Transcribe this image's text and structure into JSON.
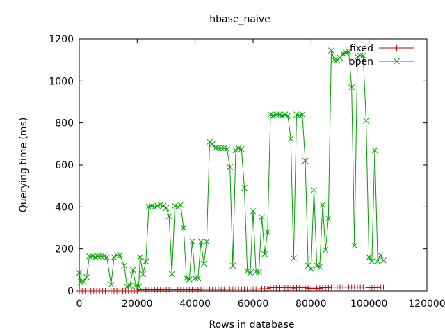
{
  "chart_data": {
    "type": "line",
    "title": "hbase_naive",
    "xlabel": "Rows in database",
    "ylabel": "Querying time (ms)",
    "xlim": [
      0,
      120000
    ],
    "ylim": [
      0,
      1200
    ],
    "xticks": [
      0,
      20000,
      40000,
      60000,
      80000,
      100000,
      120000
    ],
    "yticks": [
      0,
      200,
      400,
      600,
      800,
      1000,
      1200
    ],
    "xtick_labels": [
      "0",
      "20000",
      "40000",
      "60000",
      "80000",
      "100000",
      "120000"
    ],
    "ytick_labels": [
      "0",
      "200",
      "400",
      "600",
      "800",
      "1000",
      "1200"
    ],
    "grid": false,
    "legend_position": "top-right",
    "series": [
      {
        "name": "fixed",
        "color": "#cc0000",
        "marker": "plus",
        "points": [
          [
            0,
            0
          ],
          [
            1000,
            0
          ],
          [
            2000,
            0
          ],
          [
            3000,
            0
          ],
          [
            4000,
            0
          ],
          [
            5000,
            0
          ],
          [
            6000,
            0
          ],
          [
            7000,
            0
          ],
          [
            8000,
            0
          ],
          [
            9000,
            0
          ],
          [
            10000,
            0
          ],
          [
            11000,
            0
          ],
          [
            12000,
            0
          ],
          [
            13000,
            0
          ],
          [
            14000,
            0
          ],
          [
            15000,
            0
          ],
          [
            16000,
            0
          ],
          [
            17000,
            0
          ],
          [
            18000,
            0
          ],
          [
            19000,
            0
          ],
          [
            20000,
            0
          ],
          [
            21000,
            5
          ],
          [
            22000,
            5
          ],
          [
            23000,
            5
          ],
          [
            24000,
            5
          ],
          [
            25000,
            5
          ],
          [
            26000,
            5
          ],
          [
            27000,
            5
          ],
          [
            28000,
            5
          ],
          [
            29000,
            5
          ],
          [
            30000,
            5
          ],
          [
            31000,
            5
          ],
          [
            32000,
            5
          ],
          [
            33000,
            5
          ],
          [
            34000,
            5
          ],
          [
            35000,
            5
          ],
          [
            36000,
            5
          ],
          [
            37000,
            5
          ],
          [
            38000,
            5
          ],
          [
            39000,
            5
          ],
          [
            40000,
            5
          ],
          [
            41000,
            5
          ],
          [
            42000,
            7
          ],
          [
            43000,
            7
          ],
          [
            44000,
            7
          ],
          [
            45000,
            7
          ],
          [
            46000,
            7
          ],
          [
            47000,
            7
          ],
          [
            48000,
            7
          ],
          [
            49000,
            7
          ],
          [
            50000,
            7
          ],
          [
            51000,
            7
          ],
          [
            52000,
            8
          ],
          [
            53000,
            8
          ],
          [
            54000,
            8
          ],
          [
            55000,
            8
          ],
          [
            56000,
            8
          ],
          [
            57000,
            8
          ],
          [
            58000,
            8
          ],
          [
            59000,
            8
          ],
          [
            60000,
            8
          ],
          [
            61000,
            8
          ],
          [
            62000,
            8
          ],
          [
            63000,
            10
          ],
          [
            64000,
            10
          ],
          [
            65000,
            10
          ],
          [
            66000,
            15
          ],
          [
            67000,
            15
          ],
          [
            68000,
            15
          ],
          [
            69000,
            15
          ],
          [
            70000,
            15
          ],
          [
            71000,
            15
          ],
          [
            72000,
            15
          ],
          [
            73000,
            15
          ],
          [
            74000,
            13
          ],
          [
            75000,
            15
          ],
          [
            76000,
            15
          ],
          [
            77000,
            15
          ],
          [
            78000,
            15
          ],
          [
            79000,
            12
          ],
          [
            80000,
            12
          ],
          [
            81000,
            12
          ],
          [
            82000,
            12
          ],
          [
            83000,
            12
          ],
          [
            84000,
            15
          ],
          [
            85000,
            15
          ],
          [
            86000,
            15
          ],
          [
            87000,
            18
          ],
          [
            88000,
            18
          ],
          [
            89000,
            18
          ],
          [
            90000,
            18
          ],
          [
            91000,
            18
          ],
          [
            92000,
            18
          ],
          [
            93000,
            18
          ],
          [
            94000,
            18
          ],
          [
            95000,
            18
          ],
          [
            96000,
            18
          ],
          [
            97000,
            18
          ],
          [
            98000,
            18
          ],
          [
            99000,
            18
          ],
          [
            100000,
            15
          ],
          [
            101000,
            15
          ],
          [
            102000,
            15
          ],
          [
            103000,
            15
          ],
          [
            104000,
            18
          ],
          [
            105000,
            18
          ]
        ]
      },
      {
        "name": "open",
        "color": "#00a000",
        "marker": "cross",
        "points": [
          [
            0,
            85
          ],
          [
            500,
            42
          ],
          [
            1500,
            45
          ],
          [
            2500,
            65
          ],
          [
            3500,
            165
          ],
          [
            4500,
            165
          ],
          [
            5500,
            160
          ],
          [
            6500,
            165
          ],
          [
            7500,
            165
          ],
          [
            8500,
            165
          ],
          [
            9500,
            160
          ],
          [
            11000,
            30
          ],
          [
            12000,
            160
          ],
          [
            13000,
            170
          ],
          [
            14000,
            170
          ],
          [
            15500,
            120
          ],
          [
            16500,
            20
          ],
          [
            17500,
            25
          ],
          [
            18500,
            100
          ],
          [
            19500,
            25
          ],
          [
            20500,
            20
          ],
          [
            21000,
            160
          ],
          [
            22000,
            80
          ],
          [
            23000,
            140
          ],
          [
            24000,
            400
          ],
          [
            25000,
            405
          ],
          [
            26000,
            400
          ],
          [
            27000,
            405
          ],
          [
            28000,
            410
          ],
          [
            29000,
            405
          ],
          [
            30000,
            395
          ],
          [
            31000,
            355
          ],
          [
            32000,
            80
          ],
          [
            33000,
            405
          ],
          [
            34000,
            400
          ],
          [
            35000,
            410
          ],
          [
            36000,
            300
          ],
          [
            37000,
            60
          ],
          [
            38000,
            55
          ],
          [
            39000,
            235
          ],
          [
            40000,
            60
          ],
          [
            41000,
            60
          ],
          [
            42000,
            235
          ],
          [
            43000,
            130
          ],
          [
            44000,
            235
          ],
          [
            45000,
            710
          ],
          [
            46000,
            700
          ],
          [
            47000,
            680
          ],
          [
            48000,
            680
          ],
          [
            49000,
            680
          ],
          [
            50000,
            680
          ],
          [
            51000,
            675
          ],
          [
            52000,
            590
          ],
          [
            53000,
            120
          ],
          [
            54000,
            670
          ],
          [
            55000,
            680
          ],
          [
            56000,
            675
          ],
          [
            57000,
            490
          ],
          [
            58000,
            95
          ],
          [
            59000,
            85
          ],
          [
            60000,
            380
          ],
          [
            61000,
            90
          ],
          [
            62000,
            90
          ],
          [
            63000,
            350
          ],
          [
            64000,
            175
          ],
          [
            65000,
            280
          ],
          [
            66000,
            840
          ],
          [
            67000,
            835
          ],
          [
            68000,
            840
          ],
          [
            69000,
            840
          ],
          [
            70000,
            835
          ],
          [
            71000,
            840
          ],
          [
            72000,
            835
          ],
          [
            73000,
            725
          ],
          [
            74000,
            155
          ],
          [
            75000,
            840
          ],
          [
            76000,
            835
          ],
          [
            77000,
            840
          ],
          [
            78000,
            620
          ],
          [
            79000,
            120
          ],
          [
            80000,
            105
          ],
          [
            81000,
            480
          ],
          [
            82000,
            120
          ],
          [
            83000,
            115
          ],
          [
            84000,
            410
          ],
          [
            85000,
            195
          ],
          [
            86000,
            345
          ],
          [
            87000,
            1145
          ],
          [
            88000,
            1100
          ],
          [
            89000,
            1100
          ],
          [
            90000,
            1110
          ],
          [
            91000,
            1130
          ],
          [
            92000,
            1135
          ],
          [
            93000,
            1140
          ],
          [
            94000,
            970
          ],
          [
            95000,
            215
          ],
          [
            96000,
            1115
          ],
          [
            97000,
            1120
          ],
          [
            98000,
            1120
          ],
          [
            99000,
            810
          ],
          [
            100000,
            160
          ],
          [
            101000,
            140
          ],
          [
            102000,
            670
          ],
          [
            103000,
            140
          ],
          [
            104000,
            170
          ],
          [
            105000,
            145
          ]
        ]
      }
    ]
  }
}
